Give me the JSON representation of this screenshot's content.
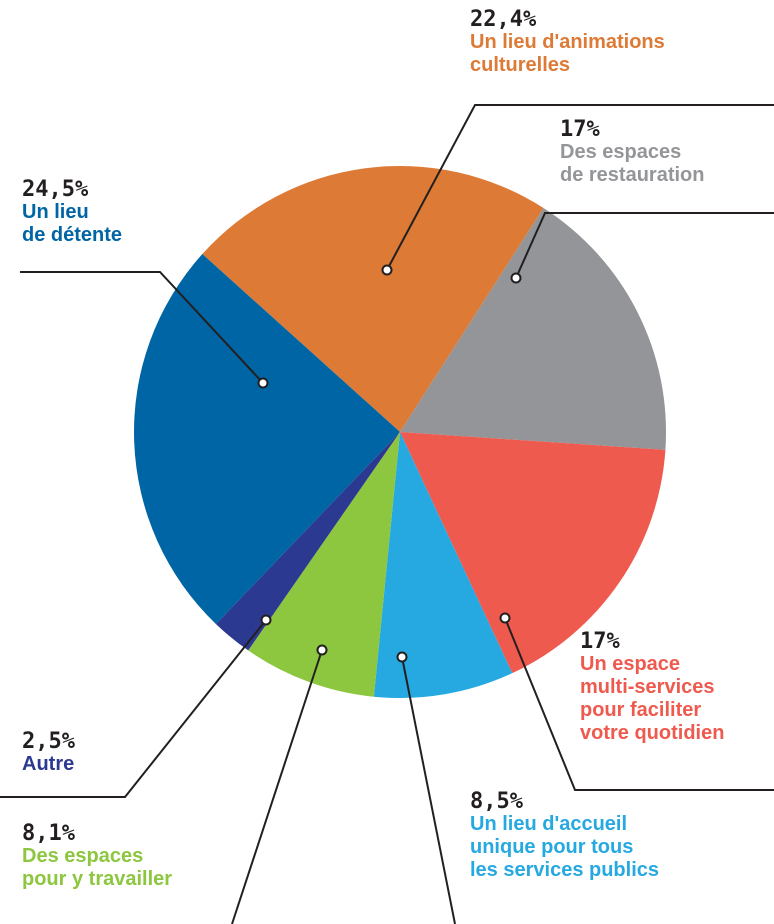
{
  "chart_data": {
    "type": "pie",
    "categories": [
      "Un lieu d'animations\nculturelles",
      "Des espaces\nde restauration",
      "Un espace\nmulti-services\npour faciliter\nvotre quotidien",
      "Un lieu d'accueil\nunique pour tous\nles services publics",
      "Des espaces\npour y travailler",
      "Autre",
      "Un lieu\nde détente"
    ],
    "values": [
      22.4,
      17,
      17,
      8.5,
      8.1,
      2.5,
      24.5
    ],
    "value_labels": [
      "22,4%",
      "17%",
      "17%",
      "8,5%",
      "8,1%",
      "2,5%",
      "24,5%"
    ],
    "colors": [
      "#dc7a36",
      "#939598",
      "#ef5a4e",
      "#26a9e0",
      "#8dc63f",
      "#2b3990",
      "#0065a4"
    ]
  }
}
